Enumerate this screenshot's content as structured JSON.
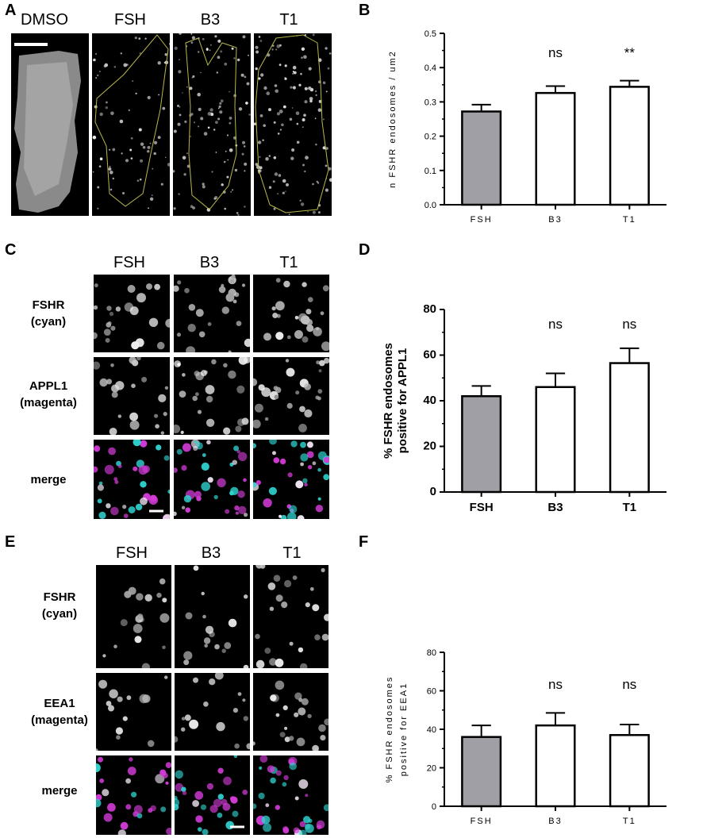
{
  "panels": {
    "A": {
      "letter": "A",
      "columns": [
        "DMSO",
        "FSH",
        "B3",
        "T1"
      ]
    },
    "C": {
      "letter": "C",
      "columns": [
        "FSH",
        "B3",
        "T1"
      ],
      "rows": [
        {
          "line1": "FSHR",
          "line2": "(cyan)"
        },
        {
          "line1": "APPL1",
          "line2": "(magenta)"
        },
        {
          "line1": "merge",
          "line2": ""
        }
      ]
    },
    "E": {
      "letter": "E",
      "columns": [
        "FSH",
        "B3",
        "T1"
      ],
      "rows": [
        {
          "line1": "FSHR",
          "line2": "(cyan)"
        },
        {
          "line1": "EEA1",
          "line2": "(magenta)"
        },
        {
          "line1": "merge",
          "line2": ""
        }
      ]
    },
    "B": {
      "letter": "B"
    },
    "D": {
      "letter": "D"
    },
    "F": {
      "letter": "F"
    }
  },
  "colors": {
    "control_bar": "#a09fa6",
    "cyan": "#2fd3d0",
    "magenta": "#d23bd6",
    "outline": "#b9b84a"
  },
  "chart_data": [
    {
      "id": "B",
      "type": "bar",
      "categories": [
        "FSH",
        "B3",
        "T1"
      ],
      "values": [
        0.272,
        0.326,
        0.344
      ],
      "errors": [
        0.02,
        0.02,
        0.018
      ],
      "annotations": [
        "",
        "ns",
        "**"
      ],
      "ylabel_lines": [
        "n FSHR endosomes / um2"
      ],
      "ylim": [
        0,
        0.5
      ],
      "yticks": [
        0.0,
        0.1,
        0.2,
        0.3,
        0.4,
        0.5
      ],
      "ytick_labels": [
        "0.0",
        "0.1",
        "0.2",
        "0.3",
        "0.4",
        "0.5"
      ],
      "bold": false,
      "spaced": true,
      "grid": false
    },
    {
      "id": "D",
      "type": "bar",
      "categories": [
        "FSH",
        "B3",
        "T1"
      ],
      "values": [
        42,
        46,
        56.5
      ],
      "errors": [
        4.5,
        6,
        6.5
      ],
      "annotations": [
        "",
        "ns",
        "ns"
      ],
      "ylabel_lines": [
        "% FSHR endosomes",
        "positive for APPL1"
      ],
      "ylim": [
        0,
        80
      ],
      "yticks": [
        0,
        20,
        40,
        60,
        80
      ],
      "ytick_labels": [
        "0",
        "20",
        "40",
        "60",
        "80"
      ],
      "bold": true,
      "spaced": false,
      "grid": false
    },
    {
      "id": "F",
      "type": "bar",
      "categories": [
        "FSH",
        "B3",
        "T1"
      ],
      "values": [
        36,
        42,
        37
      ],
      "errors": [
        6,
        6.5,
        5.5
      ],
      "annotations": [
        "",
        "ns",
        "ns"
      ],
      "ylabel_lines": [
        "% FSHR endosomes",
        "positive for EEA1"
      ],
      "ylim": [
        0,
        80
      ],
      "yticks": [
        0,
        20,
        40,
        60,
        80
      ],
      "ytick_labels": [
        "0",
        "20",
        "40",
        "60",
        "80"
      ],
      "bold": false,
      "spaced": true,
      "grid": false
    }
  ]
}
